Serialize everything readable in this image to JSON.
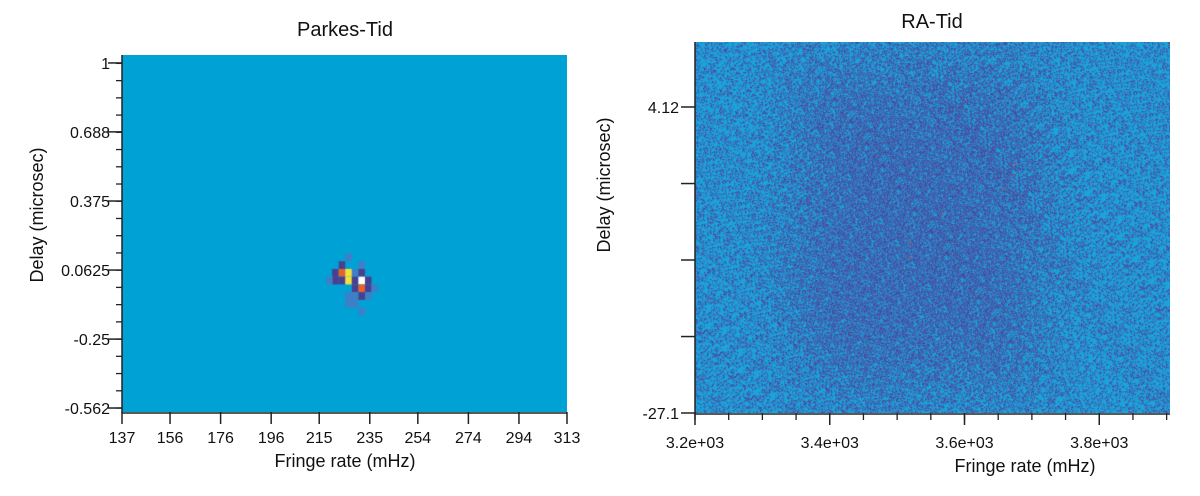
{
  "chart_data": [
    {
      "type": "heatmap",
      "title": "Parkes-Tid",
      "xlabel": "Fringe rate (mHz)",
      "ylabel": "Delay (microsec)",
      "xlim": [
        137,
        313
      ],
      "ylim": [
        -0.58,
        1.036
      ],
      "x_ticks": [
        137,
        156,
        176,
        196,
        215,
        235,
        254,
        274,
        294,
        313
      ],
      "x_tick_labels": [
        "137",
        "156",
        "176",
        "196",
        "215",
        "235",
        "254",
        "274",
        "294",
        "313"
      ],
      "y_ticks": [
        1,
        0.688,
        0.375,
        0.0625,
        -0.25,
        -0.562
      ],
      "y_tick_labels": [
        "1",
        "0.688",
        "0.375",
        "0.0625",
        "-0.25",
        "-0.562"
      ],
      "y_minor_step": 0.078,
      "background_color": "#00a2d6",
      "colormap": [
        "#00a2d6",
        "#3f7fc8",
        "#4a3f8f",
        "#e8612c",
        "#f7e03a",
        "#ffffff"
      ],
      "cell_size": [
        2.6,
        0.035
      ],
      "cells": [
        {
          "x": 224.0,
          "y": 0.085,
          "v": 0.45
        },
        {
          "x": 221.4,
          "y": 0.05,
          "v": 0.5
        },
        {
          "x": 224.0,
          "y": 0.05,
          "v": 0.75
        },
        {
          "x": 226.6,
          "y": 0.05,
          "v": 0.85
        },
        {
          "x": 221.4,
          "y": 0.015,
          "v": 0.5
        },
        {
          "x": 224.0,
          "y": 0.015,
          "v": 0.55
        },
        {
          "x": 226.6,
          "y": 0.015,
          "v": 0.82
        },
        {
          "x": 229.2,
          "y": 0.05,
          "v": 0.25
        },
        {
          "x": 231.8,
          "y": 0.05,
          "v": 0.5
        },
        {
          "x": 231.8,
          "y": 0.085,
          "v": 0.25
        },
        {
          "x": 229.2,
          "y": 0.015,
          "v": 0.5
        },
        {
          "x": 231.8,
          "y": 0.015,
          "v": 1.0
        },
        {
          "x": 234.4,
          "y": 0.015,
          "v": 0.5
        },
        {
          "x": 229.2,
          "y": -0.02,
          "v": 0.5
        },
        {
          "x": 231.8,
          "y": -0.02,
          "v": 0.7
        },
        {
          "x": 234.4,
          "y": -0.02,
          "v": 0.5
        },
        {
          "x": 229.2,
          "y": -0.055,
          "v": 0.3
        },
        {
          "x": 231.8,
          "y": -0.055,
          "v": 0.5
        },
        {
          "x": 234.4,
          "y": -0.055,
          "v": 0.3
        },
        {
          "x": 226.6,
          "y": -0.055,
          "v": 0.25
        },
        {
          "x": 226.6,
          "y": -0.09,
          "v": 0.25
        },
        {
          "x": 229.2,
          "y": -0.09,
          "v": 0.25
        },
        {
          "x": 231.8,
          "y": -0.125,
          "v": 0.25
        },
        {
          "x": 219.0,
          "y": 0.015,
          "v": 0.2
        },
        {
          "x": 236.9,
          "y": -0.02,
          "v": 0.2
        },
        {
          "x": 226.6,
          "y": 0.12,
          "v": 0.2
        }
      ]
    },
    {
      "type": "heatmap",
      "title": "RA-Tid",
      "xlabel": "Fringe rate (mHz)",
      "ylabel": "Delay (microsec)",
      "xlim": [
        3200,
        3905
      ],
      "ylim": [
        -27.1,
        10.75
      ],
      "x_ticks": [
        3200,
        3400,
        3600,
        3800
      ],
      "x_tick_labels": [
        "3.2e+03",
        "3.4e+03",
        "3.6e+03",
        "3.8e+03"
      ],
      "x_minor_step": 50,
      "y_ticks": [
        4.12,
        -3.69,
        -11.49,
        -19.3,
        -27.1
      ],
      "y_tick_labels": [
        "4.12",
        "",
        "",
        "",
        "-27.1"
      ],
      "background_color": "#1ba3db",
      "noise_color": "#4b4a9c",
      "noise_center": [
        3530,
        -8
      ],
      "noise_spread": [
        180,
        16
      ],
      "noise_density_edge": 0.22,
      "noise_density_center": 0.62
    }
  ]
}
